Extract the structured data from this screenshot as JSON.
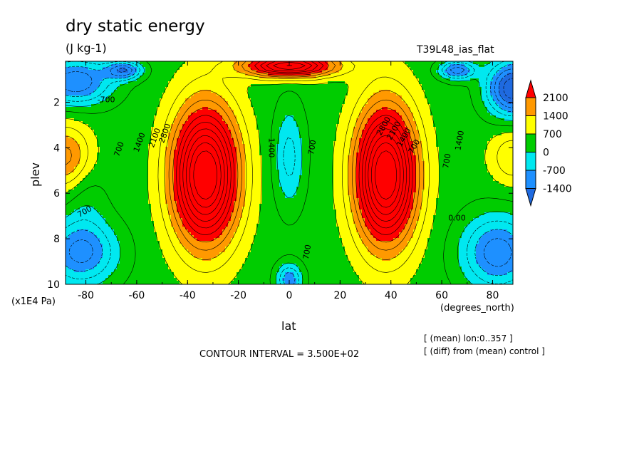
{
  "header": {
    "title": "dry static energy",
    "units": "(J kg-1)",
    "run": "T39L48_ias_flat"
  },
  "footer": {
    "contour_interval": "CONTOUR INTERVAL = 3.500E+02",
    "note_mean": "[ (mean) lon:0..357 ]",
    "note_diff": "[ (diff) from (mean) control ]"
  },
  "colors": {
    "c_neg2100": "#1f6ae0",
    "c_neg1400": "#1e90ff",
    "c_neg700": "#00e8f0",
    "c_0": "#00cc00",
    "c_700": "#ffff00",
    "c_1400": "#ff9900",
    "c_2100": "#ff0000"
  },
  "chart_data": {
    "type": "heatmap",
    "title": "dry static energy",
    "units": "(J kg-1)",
    "xlabel": "lat",
    "xunit": "(degrees_north)",
    "ylabel": "plev",
    "yunit": "(x1E4 Pa)",
    "xlim": [
      -88,
      88
    ],
    "ylim": [
      10,
      0.2
    ],
    "x_ticks": [
      -80,
      -60,
      -40,
      -20,
      0,
      20,
      40,
      60,
      80
    ],
    "y_ticks": [
      2,
      4,
      6,
      8,
      10
    ],
    "colorbar_labels": [
      "2100",
      "1400",
      "700",
      "0",
      "-700",
      "-1400"
    ],
    "contour_interval": 350,
    "contour_labels": [
      "700",
      "1400",
      "2100",
      "2800",
      "700",
      "1400",
      "2100",
      "2800",
      "0.00",
      "700",
      "1400",
      "700",
      "1400",
      "-700",
      "700",
      "700"
    ]
  }
}
